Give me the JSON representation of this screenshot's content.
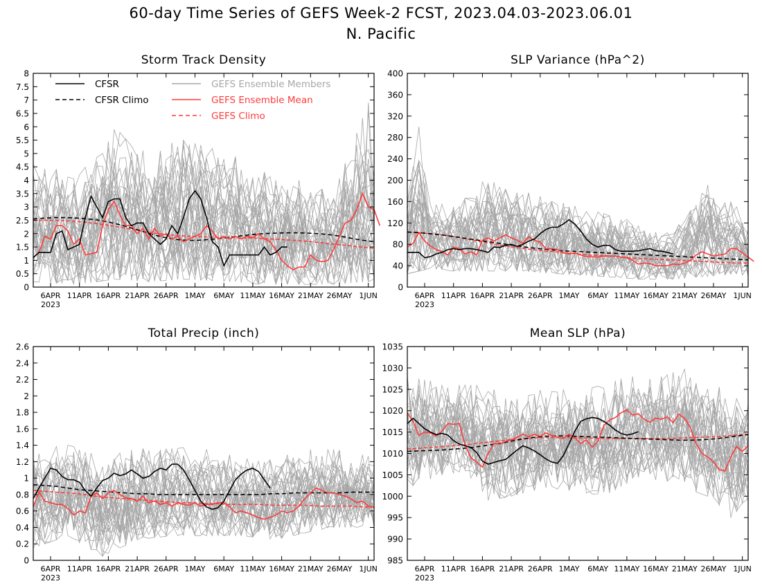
{
  "figure": {
    "title_line1": "60-day Time Series of GEFS Week-2 FCST, 2023.04.03-2023.06.01",
    "title_line2": "N. Pacific"
  },
  "legend": {
    "cfsr": "CFSR",
    "cfsr_climo": "CFSR Climo",
    "members": "GEFS Ensemble Members",
    "ens_mean": "GEFS Ensemble Mean",
    "gefs_climo": "GEFS Climo"
  },
  "colors": {
    "cfsr": "#000000",
    "members": "#a6a6a6",
    "ens_mean": "#ff3a3a",
    "gefs_climo": "#ff3a3a"
  },
  "chart_data": [
    {
      "id": "storm",
      "type": "line",
      "title": "Storm Track Density",
      "ylim": [
        0,
        8
      ],
      "yticks": [
        "0",
        "0.5",
        "1",
        "1.5",
        "2",
        "2.5",
        "3",
        "3.5",
        "4",
        "4.5",
        "5",
        "5.5",
        "6",
        "6.5",
        "7",
        "7.5",
        "8"
      ],
      "xlim": [
        "2023-04-03",
        "2023-06-01"
      ],
      "xticks": [
        "6APR",
        "11APR",
        "16APR",
        "21APR",
        "26APR",
        "1MAY",
        "6MAY",
        "11MAY",
        "16MAY",
        "21MAY",
        "26MAY",
        "1JUN"
      ],
      "xyear": "2023",
      "member_spread": {
        "x": [
          0,
          8,
          14,
          20,
          26,
          34,
          40,
          46,
          52,
          58,
          59
        ],
        "lo": [
          0.2,
          0.1,
          0.3,
          0.2,
          0.3,
          0.2,
          0.1,
          0.1,
          0.1,
          0.2,
          0.3
        ],
        "hi": [
          4.6,
          4.2,
          5.9,
          5.2,
          5.5,
          5.0,
          4.3,
          4.0,
          3.5,
          6.9,
          4.8
        ]
      },
      "series": [
        {
          "name": "CFSR",
          "x_day": 0,
          "values": [
            1.1,
            1.3,
            1.3,
            1.3,
            2.0,
            2.1,
            1.4,
            1.5,
            1.6,
            2.6,
            3.4,
            3.0,
            2.6,
            3.2,
            3.3,
            3.3,
            2.6,
            2.3,
            2.4,
            2.4,
            2.0,
            1.8,
            1.6,
            1.8,
            2.3,
            2.0,
            2.6,
            3.3,
            3.6,
            3.3,
            2.6,
            1.7,
            1.5,
            0.8,
            1.2,
            1.2,
            1.2,
            1.2,
            1.2,
            1.2,
            1.5,
            1.2,
            1.3,
            1.5,
            1.5
          ]
        },
        {
          "name": "CFSR Climo",
          "x_day": 0,
          "values": [
            2.55,
            2.58,
            2.6,
            2.6,
            2.58,
            2.55,
            2.5,
            2.42,
            2.32,
            2.2,
            2.08,
            1.95,
            1.85,
            1.78,
            1.75,
            1.75,
            1.78,
            1.82,
            1.87,
            1.92,
            1.97,
            2.0,
            2.02,
            2.03,
            2.03,
            2.02,
            2.0,
            1.96,
            1.9,
            1.82,
            1.75,
            1.7
          ]
        },
        {
          "name": "GEFS Ensemble Mean",
          "x_day": 0,
          "values": [
            1.1,
            1.3,
            1.9,
            1.8,
            2.3,
            2.3,
            2.1,
            1.6,
            1.8,
            1.2,
            1.25,
            1.3,
            2.3,
            2.9,
            3.2,
            2.7,
            2.3,
            2.3,
            2.0,
            2.2,
            1.8,
            2.2,
            1.9,
            2.0,
            1.8,
            1.9,
            1.7,
            1.8,
            1.9,
            2.0,
            2.3,
            2.1,
            1.8,
            1.9,
            1.8,
            1.9,
            1.8,
            1.9,
            1.85,
            2.0,
            1.8,
            1.7,
            1.4,
            1.0,
            0.8,
            0.65,
            0.75,
            0.75,
            1.2,
            1.0,
            0.95,
            1.0,
            1.4,
            1.9,
            2.4,
            2.5,
            2.9,
            3.5,
            3.0,
            2.9,
            2.3
          ]
        },
        {
          "name": "GEFS Climo",
          "x_day": 0,
          "values": [
            2.5,
            2.5,
            2.49,
            2.47,
            2.43,
            2.38,
            2.31,
            2.23,
            2.14,
            2.06,
            2.0,
            1.95,
            1.91,
            1.89,
            1.87,
            1.86,
            1.85,
            1.84,
            1.82,
            1.8,
            1.77,
            1.74,
            1.7,
            1.65,
            1.6,
            1.55,
            1.5,
            1.45
          ]
        }
      ]
    },
    {
      "id": "slpvar",
      "type": "line",
      "title": "SLP Variance (hPa^2)",
      "ylim": [
        0,
        400
      ],
      "yticks": [
        "0",
        "40",
        "80",
        "120",
        "160",
        "200",
        "240",
        "280",
        "320",
        "360",
        "400"
      ],
      "xlim": [
        "2023-04-03",
        "2023-06-01"
      ],
      "xticks": [
        "6APR",
        "11APR",
        "16APR",
        "21APR",
        "26APR",
        "1MAY",
        "6MAY",
        "11MAY",
        "16MAY",
        "21MAY",
        "26MAY",
        "1JUN"
      ],
      "xyear": "2023",
      "member_spread": {
        "x": [
          0,
          2,
          4,
          8,
          14,
          20,
          26,
          34,
          40,
          46,
          52,
          57,
          59
        ],
        "lo": [
          25,
          30,
          35,
          30,
          30,
          30,
          25,
          20,
          15,
          15,
          20,
          25,
          20
        ],
        "hi": [
          160,
          300,
          160,
          150,
          210,
          180,
          160,
          140,
          120,
          100,
          200,
          150,
          110
        ]
      },
      "series": [
        {
          "name": "CFSR",
          "x_day": 0,
          "values": [
            65,
            65,
            65,
            55,
            57,
            62,
            65,
            70,
            72,
            70,
            72,
            72,
            70,
            68,
            65,
            75,
            74,
            78,
            80,
            76,
            80,
            86,
            90,
            100,
            108,
            112,
            112,
            118,
            126,
            118,
            105,
            90,
            80,
            75,
            78,
            78,
            70,
            67,
            67,
            67,
            68,
            70,
            72,
            68,
            67,
            65,
            62
          ]
        },
        {
          "name": "CFSR Climo",
          "x_day": 0,
          "values": [
            103,
            102,
            100,
            98,
            95,
            92,
            89,
            86,
            83,
            80,
            77,
            74,
            72,
            70,
            68,
            67,
            66,
            65,
            64,
            63,
            62,
            61,
            60,
            59,
            58,
            57,
            56,
            55,
            54,
            53,
            52,
            51
          ]
        },
        {
          "name": "GEFS Ensemble Mean",
          "x_day": 0,
          "values": [
            75,
            82,
            102,
            86,
            77,
            70,
            66,
            60,
            75,
            72,
            62,
            66,
            60,
            88,
            92,
            86,
            92,
            98,
            92,
            88,
            82,
            94,
            88,
            84,
            72,
            72,
            70,
            64,
            62,
            64,
            60,
            57,
            57,
            56,
            58,
            58,
            58,
            56,
            55,
            50,
            43,
            45,
            44,
            40,
            40,
            40,
            43,
            42,
            45,
            50,
            60,
            66,
            62,
            58,
            60,
            62,
            72,
            72,
            64,
            56,
            48
          ]
        },
        {
          "name": "GEFS Climo",
          "x_day": 0,
          "values": [
            103,
            102,
            100,
            98,
            95,
            91,
            87,
            83,
            79,
            76,
            73,
            70,
            68,
            66,
            64,
            62,
            60,
            59,
            58,
            56,
            54,
            53,
            52,
            51,
            50,
            49,
            48,
            47,
            46,
            45,
            45
          ]
        }
      ]
    },
    {
      "id": "precip",
      "type": "line",
      "title": "Total Precip (inch)",
      "ylim": [
        0,
        2.6
      ],
      "yticks": [
        "0",
        "0.2",
        "0.4",
        "0.6",
        "0.8",
        "1",
        "1.2",
        "1.4",
        "1.6",
        "1.8",
        "2",
        "2.2",
        "2.4",
        "2.6"
      ],
      "xlim": [
        "2023-04-03",
        "2023-06-01"
      ],
      "xticks": [
        "6APR",
        "11APR",
        "16APR",
        "21APR",
        "26APR",
        "1MAY",
        "6MAY",
        "11MAY",
        "16MAY",
        "21MAY",
        "26MAY",
        "1JUN"
      ],
      "xyear": "2023",
      "member_spread": {
        "x": [
          0,
          6,
          12,
          18,
          24,
          30,
          36,
          42,
          48,
          52,
          56,
          59
        ],
        "lo": [
          0.15,
          0.3,
          0.05,
          0.25,
          0.3,
          0.3,
          0.3,
          0.25,
          0.35,
          0.4,
          0.4,
          0.35
        ],
        "hi": [
          1.35,
          1.4,
          1.3,
          1.35,
          1.4,
          1.35,
          1.25,
          1.25,
          1.35,
          1.35,
          1.3,
          1.25
        ]
      },
      "series": [
        {
          "name": "CFSR",
          "x_day": 0,
          "values": [
            0.75,
            0.88,
            1.0,
            1.12,
            1.1,
            1.02,
            0.98,
            0.98,
            0.95,
            0.85,
            0.78,
            0.88,
            0.97,
            1.0,
            1.06,
            1.03,
            1.05,
            1.1,
            1.05,
            1.0,
            1.02,
            1.08,
            1.12,
            1.1,
            1.17,
            1.17,
            1.1,
            0.98,
            0.85,
            0.72,
            0.65,
            0.62,
            0.64,
            0.72,
            0.85,
            0.98,
            1.05,
            1.1,
            1.12,
            1.08,
            0.98,
            0.88
          ]
        },
        {
          "name": "CFSR Climo",
          "x_day": 0,
          "values": [
            0.92,
            0.91,
            0.9,
            0.88,
            0.86,
            0.85,
            0.84,
            0.83,
            0.82,
            0.81,
            0.81,
            0.8,
            0.8,
            0.8,
            0.8,
            0.8,
            0.8,
            0.8,
            0.8,
            0.8,
            0.8,
            0.81,
            0.81,
            0.82,
            0.82,
            0.82,
            0.82,
            0.82,
            0.83,
            0.83,
            0.83
          ]
        },
        {
          "name": "GEFS Ensemble Mean",
          "x_day": 0,
          "values": [
            0.65,
            0.83,
            0.72,
            0.7,
            0.68,
            0.68,
            0.63,
            0.55,
            0.6,
            0.58,
            0.78,
            0.82,
            0.75,
            0.82,
            0.85,
            0.8,
            0.76,
            0.75,
            0.72,
            0.78,
            0.7,
            0.72,
            0.68,
            0.7,
            0.66,
            0.7,
            0.68,
            0.67,
            0.7,
            0.66,
            0.68,
            0.68,
            0.7,
            0.7,
            0.65,
            0.58,
            0.6,
            0.58,
            0.55,
            0.52,
            0.5,
            0.52,
            0.55,
            0.6,
            0.58,
            0.6,
            0.66,
            0.75,
            0.82,
            0.88,
            0.85,
            0.82,
            0.82,
            0.8,
            0.78,
            0.75,
            0.7,
            0.72,
            0.66,
            0.65
          ]
        },
        {
          "name": "GEFS Climo",
          "x_day": 0,
          "values": [
            0.85,
            0.84,
            0.83,
            0.82,
            0.81,
            0.79,
            0.77,
            0.76,
            0.75,
            0.74,
            0.73,
            0.72,
            0.71,
            0.7,
            0.7,
            0.69,
            0.69,
            0.68,
            0.68,
            0.68,
            0.68,
            0.67,
            0.67,
            0.67,
            0.67,
            0.66,
            0.66,
            0.66,
            0.66,
            0.65,
            0.65
          ]
        }
      ]
    },
    {
      "id": "mslp",
      "type": "line",
      "title": "Mean SLP (hPa)",
      "ylim": [
        985,
        1035
      ],
      "yticks": [
        "985",
        "990",
        "995",
        "1000",
        "1005",
        "1010",
        "1015",
        "1020",
        "1025",
        "1030",
        "1035"
      ],
      "xlim": [
        "2023-04-03",
        "2023-06-01"
      ],
      "xticks": [
        "6APR",
        "11APR",
        "16APR",
        "21APR",
        "26APR",
        "1MAY",
        "6MAY",
        "11MAY",
        "16MAY",
        "21MAY",
        "26MAY",
        "1JUN"
      ],
      "xyear": "2023",
      "member_spread": {
        "x": [
          0,
          4,
          10,
          14,
          18,
          24,
          30,
          34,
          38,
          44,
          48,
          52,
          56,
          59
        ],
        "lo": [
          1002,
          1004,
          1006,
          999,
          1000,
          1002,
          1001,
          1000,
          1003,
          1004,
          1002,
          1000,
          995,
          999
        ],
        "hi": [
          1028,
          1027,
          1026,
          1026,
          1024,
          1025,
          1025,
          1026,
          1028,
          1028,
          1030,
          1027,
          1024,
          1024
        ]
      },
      "series": [
        {
          "name": "CFSR",
          "x_day": 0,
          "values": [
            1017,
            1018.2,
            1017,
            1015.8,
            1015,
            1014.4,
            1014.7,
            1014.3,
            1013,
            1012.2,
            1011.8,
            1011.4,
            1010.2,
            1008.2,
            1007.5,
            1007.9,
            1008.3,
            1008.6,
            1009.7,
            1010.8,
            1011.8,
            1011.3,
            1010.6,
            1009.7,
            1008.7,
            1008,
            1007.7,
            1009.5,
            1012.3,
            1015.2,
            1017.5,
            1018.1,
            1018.4,
            1018.2,
            1017.5,
            1016.6,
            1015.5,
            1014.7,
            1014.3,
            1014.6,
            1015.1
          ]
        },
        {
          "name": "CFSR Climo",
          "x_day": 0,
          "values": [
            1010.5,
            1010.6,
            1010.7,
            1010.8,
            1011,
            1011.2,
            1011.5,
            1011.9,
            1012.3,
            1012.8,
            1013.3,
            1013.7,
            1014,
            1014.1,
            1014.1,
            1014,
            1013.9,
            1013.8,
            1013.7,
            1013.6,
            1013.5,
            1013.4,
            1013.3,
            1013.2,
            1013.1,
            1013.1,
            1013.2,
            1013.4,
            1013.7,
            1014.1,
            1014.4
          ]
        },
        {
          "name": "GEFS Ensemble Mean",
          "x_day": 0,
          "values": [
            1019.5,
            1017.5,
            1014.2,
            1015,
            1014.8,
            1014.1,
            1015.2,
            1017,
            1016.8,
            1017,
            1012,
            1009,
            1008,
            1006.8,
            1010,
            1012.4,
            1012.2,
            1012.8,
            1013.2,
            1013.8,
            1014.5,
            1013.9,
            1014.5,
            1014,
            1014.8,
            1014.2,
            1013.8,
            1013.5,
            1014.5,
            1013.7,
            1012.3,
            1013.2,
            1011.5,
            1012.8,
            1016.5,
            1017.8,
            1018.4,
            1019.5,
            1020.2,
            1019,
            1019.3,
            1018,
            1017.3,
            1018.3,
            1018,
            1018.6,
            1017.2,
            1019.2,
            1018.2,
            1016,
            1012.3,
            1010,
            1009.2,
            1008,
            1006.2,
            1005.9,
            1009.2,
            1011.6,
            1010.5,
            1011.8
          ]
        },
        {
          "name": "GEFS Climo",
          "x_day": 0,
          "values": [
            1011,
            1011.2,
            1011.4,
            1011.6,
            1011.8,
            1012,
            1012.3,
            1012.6,
            1012.9,
            1013.2,
            1013.4,
            1013.6,
            1013.7,
            1013.7,
            1013.7,
            1013.6,
            1013.6,
            1013.5,
            1013.5,
            1013.5,
            1013.5,
            1013.5,
            1013.5,
            1013.5,
            1013.6,
            1013.7,
            1013.8,
            1013.9,
            1014.1,
            1014.3,
            1014.5
          ]
        }
      ]
    }
  ]
}
